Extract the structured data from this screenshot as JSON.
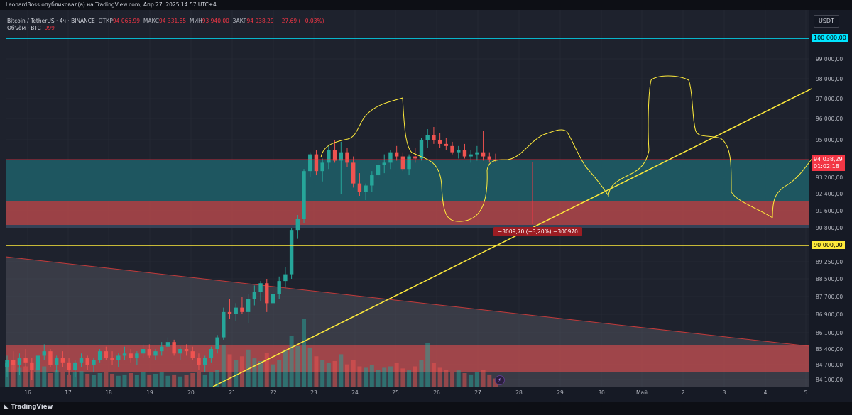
{
  "header": {
    "attribution": "LeonardBoss опубликовал(а) на TradingView.com, Апр 27, 2025 14:57 UTC+4"
  },
  "legend": {
    "symbol": "Bitcoin / TetherUS · 4ч · BINANCE",
    "open_label": "ОТКР",
    "open_value": "94 065,99",
    "high_label": "МАКС",
    "high_value": "94 331,85",
    "low_label": "МИН",
    "low_value": "93 940,00",
    "close_label": "ЗАКР",
    "close_value": "94 038,29",
    "change": "−27,69 (−0,03%)",
    "volume_label": "Объём · BTC",
    "volume_value": "999"
  },
  "currency_button": "USDT",
  "price_axis": {
    "ticks": [
      "99 000,00",
      "98 000,00",
      "97 000,00",
      "96 000,00",
      "95 000,00",
      "93 200,00",
      "92 400,00",
      "91 600,00",
      "90 800,00",
      "89 250,00",
      "88 500,00",
      "87 700,00",
      "86 900,00",
      "86 100,00",
      "85 400,00",
      "84 700,00",
      "84 100,00"
    ],
    "level_upper": "100 000,00",
    "level_lower": "90 000,00",
    "last_price": "94 038,29",
    "countdown": "01:02:18"
  },
  "time_axis": [
    "16",
    "17",
    "18",
    "19",
    "20",
    "21",
    "22",
    "23",
    "24",
    "25",
    "26",
    "27",
    "28",
    "29",
    "30",
    "Май",
    "2",
    "3",
    "4",
    "5"
  ],
  "measure_label": "−3009,70 (−3,20%) −300970",
  "footer_logo": "TradingView",
  "colors": {
    "up": "#26a69a",
    "down": "#ef5350",
    "cyan_level": "#00e5ff",
    "yellow_level": "#ffeb3b",
    "teal_zone": "#1e5c66",
    "red_zone": "#b2474b",
    "background": "#1e222d"
  },
  "chart_data": {
    "type": "candlestick",
    "series": [
      {
        "name": "Bitcoin / TetherUS",
        "values": [
          [
            84600,
            85100,
            84200,
            84900
          ],
          [
            84900,
            85300,
            84500,
            84700
          ],
          [
            84700,
            85200,
            84300,
            85000
          ],
          [
            85000,
            85400,
            84600,
            84800
          ],
          [
            84800,
            85000,
            84100,
            84500
          ],
          [
            84500,
            85200,
            84300,
            85100
          ],
          [
            85100,
            85600,
            84900,
            85300
          ],
          [
            85300,
            85400,
            84600,
            84700
          ],
          [
            84700,
            85100,
            84400,
            85000
          ],
          [
            85000,
            85300,
            84600,
            84800
          ],
          [
            84800,
            85000,
            84300,
            84500
          ],
          [
            84500,
            84900,
            84200,
            84800
          ],
          [
            84800,
            85200,
            84600,
            85000
          ],
          [
            85000,
            85100,
            84500,
            84700
          ],
          [
            84700,
            85000,
            84400,
            84900
          ],
          [
            84900,
            85400,
            84800,
            85300
          ],
          [
            85300,
            85500,
            84900,
            85000
          ],
          [
            85000,
            85300,
            84700,
            84900
          ],
          [
            84900,
            85200,
            84600,
            85100
          ],
          [
            85100,
            85500,
            84900,
            85200
          ],
          [
            85200,
            85400,
            84800,
            85000
          ],
          [
            85000,
            85300,
            84700,
            85200
          ],
          [
            85200,
            85600,
            85000,
            85400
          ],
          [
            85400,
            85600,
            85000,
            85100
          ],
          [
            85100,
            85400,
            84900,
            85300
          ],
          [
            85300,
            85700,
            85100,
            85500
          ],
          [
            85500,
            85900,
            85300,
            85700
          ],
          [
            85700,
            85800,
            85100,
            85200
          ],
          [
            85200,
            85500,
            84900,
            85400
          ],
          [
            85400,
            85600,
            85100,
            85300
          ],
          [
            85300,
            85500,
            84900,
            85000
          ],
          [
            85000,
            85200,
            84500,
            84700
          ],
          [
            84700,
            85100,
            84400,
            85000
          ],
          [
            85000,
            85500,
            84800,
            85400
          ],
          [
            85400,
            86000,
            85200,
            85900
          ],
          [
            85900,
            87200,
            85800,
            87000
          ],
          [
            87000,
            87600,
            86700,
            86900
          ],
          [
            86900,
            87400,
            86600,
            87200
          ],
          [
            87200,
            87700,
            86900,
            87000
          ],
          [
            87000,
            87800,
            86500,
            87600
          ],
          [
            87600,
            88200,
            87300,
            87900
          ],
          [
            87900,
            88400,
            87500,
            88300
          ],
          [
            88300,
            88500,
            87000,
            87400
          ],
          [
            87400,
            87900,
            87100,
            87800
          ],
          [
            87800,
            88600,
            87600,
            88400
          ],
          [
            88400,
            89000,
            88100,
            88700
          ],
          [
            88700,
            90800,
            88500,
            90700
          ],
          [
            90700,
            91400,
            90300,
            91200
          ],
          [
            91200,
            93600,
            91000,
            93500
          ],
          [
            93500,
            94400,
            93200,
            94300
          ],
          [
            94300,
            94500,
            93300,
            93500
          ],
          [
            93500,
            94100,
            93000,
            93900
          ],
          [
            93900,
            94700,
            93600,
            94500
          ],
          [
            94500,
            95000,
            93900,
            94000
          ],
          [
            94000,
            94900,
            92400,
            94400
          ],
          [
            94400,
            94600,
            93700,
            93900
          ],
          [
            93900,
            94200,
            92700,
            92900
          ],
          [
            92900,
            93400,
            92300,
            92500
          ],
          [
            92500,
            92900,
            92100,
            92800
          ],
          [
            92800,
            93500,
            92500,
            93300
          ],
          [
            93300,
            94000,
            93100,
            93800
          ],
          [
            93800,
            94300,
            93400,
            93900
          ],
          [
            93900,
            94500,
            93600,
            94400
          ],
          [
            94400,
            94700,
            94000,
            94200
          ],
          [
            94200,
            94400,
            93500,
            93600
          ],
          [
            93600,
            94300,
            93300,
            94200
          ],
          [
            94200,
            94600,
            93900,
            94100
          ],
          [
            94100,
            95100,
            94000,
            95000
          ],
          [
            95000,
            95500,
            94600,
            95200
          ],
          [
            95200,
            95600,
            94800,
            95000
          ],
          [
            95000,
            95300,
            94600,
            94800
          ],
          [
            94800,
            95100,
            94500,
            94700
          ],
          [
            94700,
            94900,
            94300,
            94400
          ],
          [
            94400,
            94700,
            94100,
            94500
          ],
          [
            94500,
            94800,
            94100,
            94200
          ],
          [
            94200,
            94500,
            93900,
            94300
          ],
          [
            94300,
            94700,
            94000,
            94400
          ],
          [
            94400,
            95400,
            94000,
            94200
          ],
          [
            94200,
            94400,
            93900,
            94066
          ],
          [
            94066,
            94332,
            93940,
            94038
          ]
        ]
      }
    ],
    "volume": [
      0.35,
      0.32,
      0.28,
      0.3,
      0.22,
      0.27,
      0.3,
      0.2,
      0.24,
      0.22,
      0.18,
      0.21,
      0.23,
      0.19,
      0.17,
      0.2,
      0.22,
      0.19,
      0.16,
      0.18,
      0.2,
      0.17,
      0.22,
      0.18,
      0.19,
      0.21,
      0.16,
      0.18,
      0.15,
      0.17,
      0.2,
      0.22,
      0.18,
      0.21,
      0.25,
      0.62,
      0.48,
      0.4,
      0.45,
      0.55,
      0.42,
      0.38,
      0.5,
      0.33,
      0.4,
      0.55,
      0.75,
      0.6,
      1.0,
      0.58,
      0.45,
      0.4,
      0.35,
      0.38,
      0.48,
      0.33,
      0.4,
      0.3,
      0.28,
      0.32,
      0.25,
      0.28,
      0.3,
      0.35,
      0.27,
      0.24,
      0.3,
      0.4,
      0.65,
      0.35,
      0.28,
      0.25,
      0.22,
      0.24,
      0.2,
      0.18,
      0.22,
      0.25,
      0.18,
      0.12
    ],
    "levels": [
      100000,
      90000
    ],
    "zones": [
      {
        "from": 92000,
        "to": 94100
      },
      {
        "from": 91000,
        "to": 92000
      }
    ],
    "ylim": [
      84100,
      100500
    ]
  }
}
